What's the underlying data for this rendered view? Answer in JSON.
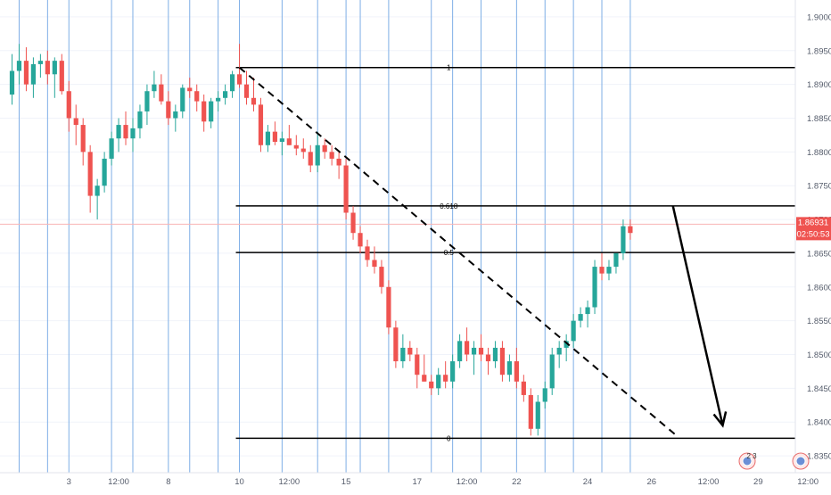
{
  "chart_data": {
    "type": "candlestick",
    "title": "",
    "xlabel": "",
    "ylabel": "",
    "ylim": [
      1.8325,
      1.9025
    ],
    "x_ticks": [
      {
        "label": "3",
        "i": 8
      },
      {
        "label": "12:00",
        "i": 15
      },
      {
        "label": "8",
        "i": 22
      },
      {
        "label": "10",
        "i": 32
      },
      {
        "label": "12:00",
        "i": 39
      },
      {
        "label": "15",
        "i": 47
      },
      {
        "label": "17",
        "i": 57
      },
      {
        "label": "12:00",
        "i": 64
      },
      {
        "label": "22",
        "i": 71
      },
      {
        "label": "24",
        "i": 81
      },
      {
        "label": "26",
        "i": 90
      },
      {
        "label": "12:00",
        "i": 98
      },
      {
        "label": "29",
        "i": 105
      },
      {
        "label": "12:00",
        "i": 112
      }
    ],
    "y_ticks": [
      "1.83500",
      "1.84000",
      "1.84500",
      "1.85000",
      "1.85500",
      "1.86000",
      "1.86500",
      "1.87000",
      "1.87500",
      "1.88000",
      "1.88500",
      "1.89000",
      "1.89500",
      "1.90000"
    ],
    "price_label": {
      "value": "1.86931",
      "countdown": "02:50:53",
      "price": 1.8693
    },
    "colors": {
      "up": "#26a69a",
      "down": "#ef5350",
      "vline": "#7eaee6",
      "fib": "#000000",
      "price_line": "#f8b4b4",
      "price_bg": "#ef5350"
    },
    "candles": [
      [
        1.8885,
        1.8945,
        1.887,
        1.892
      ],
      [
        1.892,
        1.896,
        1.89,
        1.8935
      ],
      [
        1.8935,
        1.8955,
        1.889,
        1.89
      ],
      [
        1.89,
        1.894,
        1.888,
        1.893
      ],
      [
        1.893,
        1.8945,
        1.891,
        1.8935
      ],
      [
        1.8935,
        1.895,
        1.89,
        1.8915
      ],
      [
        1.8915,
        1.894,
        1.888,
        1.8935
      ],
      [
        1.8935,
        1.8945,
        1.8885,
        1.889
      ],
      [
        1.889,
        1.8905,
        1.883,
        1.885
      ],
      [
        1.885,
        1.887,
        1.881,
        1.884
      ],
      [
        1.884,
        1.885,
        1.878,
        1.88
      ],
      [
        1.88,
        1.881,
        1.871,
        1.8735
      ],
      [
        1.8735,
        1.876,
        1.87,
        1.875
      ],
      [
        1.875,
        1.88,
        1.874,
        1.879
      ],
      [
        1.879,
        1.883,
        1.878,
        1.882
      ],
      [
        1.882,
        1.885,
        1.88,
        1.884
      ],
      [
        1.884,
        1.886,
        1.881,
        1.882
      ],
      [
        1.882,
        1.885,
        1.88,
        1.8835
      ],
      [
        1.8835,
        1.887,
        1.882,
        1.886
      ],
      [
        1.886,
        1.89,
        1.884,
        1.889
      ],
      [
        1.889,
        1.892,
        1.888,
        1.89
      ],
      [
        1.89,
        1.8915,
        1.887,
        1.8875
      ],
      [
        1.8875,
        1.889,
        1.884,
        1.885
      ],
      [
        1.885,
        1.887,
        1.883,
        1.886
      ],
      [
        1.886,
        1.89,
        1.885,
        1.8895
      ],
      [
        1.8895,
        1.891,
        1.888,
        1.889
      ],
      [
        1.889,
        1.89,
        1.886,
        1.8875
      ],
      [
        1.8875,
        1.8885,
        1.883,
        1.8845
      ],
      [
        1.8845,
        1.888,
        1.8835,
        1.8875
      ],
      [
        1.8875,
        1.889,
        1.886,
        1.888
      ],
      [
        1.888,
        1.89,
        1.887,
        1.889
      ],
      [
        1.889,
        1.892,
        1.888,
        1.8915
      ],
      [
        1.8915,
        1.896,
        1.8895,
        1.89
      ],
      [
        1.89,
        1.892,
        1.887,
        1.888
      ],
      [
        1.888,
        1.891,
        1.886,
        1.887
      ],
      [
        1.887,
        1.888,
        1.88,
        1.881
      ],
      [
        1.881,
        1.884,
        1.88,
        1.883
      ],
      [
        1.883,
        1.8845,
        1.881,
        1.8815
      ],
      [
        1.8815,
        1.883,
        1.8795,
        1.882
      ],
      [
        1.882,
        1.884,
        1.881,
        1.881
      ],
      [
        1.881,
        1.8825,
        1.8795,
        1.8805
      ],
      [
        1.8805,
        1.882,
        1.879,
        1.88
      ],
      [
        1.88,
        1.881,
        1.877,
        1.878
      ],
      [
        1.878,
        1.883,
        1.877,
        1.881
      ],
      [
        1.881,
        1.882,
        1.879,
        1.88
      ],
      [
        1.88,
        1.881,
        1.878,
        1.879
      ],
      [
        1.879,
        1.88,
        1.876,
        1.878
      ],
      [
        1.878,
        1.879,
        1.87,
        1.871
      ],
      [
        1.871,
        1.872,
        1.867,
        1.868
      ],
      [
        1.868,
        1.869,
        1.865,
        1.866
      ],
      [
        1.866,
        1.867,
        1.863,
        1.864
      ],
      [
        1.864,
        1.866,
        1.862,
        1.863
      ],
      [
        1.863,
        1.864,
        1.859,
        1.86
      ],
      [
        1.86,
        1.861,
        1.853,
        1.854
      ],
      [
        1.854,
        1.855,
        1.848,
        1.849
      ],
      [
        1.849,
        1.853,
        1.848,
        1.851
      ],
      [
        1.851,
        1.852,
        1.849,
        1.85
      ],
      [
        1.85,
        1.851,
        1.845,
        1.847
      ],
      [
        1.847,
        1.85,
        1.846,
        1.846
      ],
      [
        1.846,
        1.847,
        1.844,
        1.845
      ],
      [
        1.845,
        1.848,
        1.844,
        1.847
      ],
      [
        1.847,
        1.849,
        1.845,
        1.846
      ],
      [
        1.846,
        1.85,
        1.845,
        1.849
      ],
      [
        1.849,
        1.853,
        1.848,
        1.852
      ],
      [
        1.852,
        1.854,
        1.849,
        1.85
      ],
      [
        1.85,
        1.852,
        1.847,
        1.851
      ],
      [
        1.851,
        1.853,
        1.849,
        1.85
      ],
      [
        1.85,
        1.851,
        1.847,
        1.849
      ],
      [
        1.849,
        1.852,
        1.848,
        1.851
      ],
      [
        1.851,
        1.852,
        1.846,
        1.847
      ],
      [
        1.847,
        1.85,
        1.846,
        1.849
      ],
      [
        1.849,
        1.851,
        1.845,
        1.846
      ],
      [
        1.846,
        1.847,
        1.843,
        1.844
      ],
      [
        1.844,
        1.845,
        1.838,
        1.839
      ],
      [
        1.839,
        1.844,
        1.838,
        1.843
      ],
      [
        1.843,
        1.846,
        1.842,
        1.845
      ],
      [
        1.845,
        1.851,
        1.844,
        1.85
      ],
      [
        1.85,
        1.852,
        1.848,
        1.851
      ],
      [
        1.851,
        1.853,
        1.849,
        1.852
      ],
      [
        1.852,
        1.856,
        1.851,
        1.855
      ],
      [
        1.855,
        1.857,
        1.854,
        1.856
      ],
      [
        1.856,
        1.858,
        1.854,
        1.857
      ],
      [
        1.857,
        1.864,
        1.856,
        1.863
      ],
      [
        1.863,
        1.865,
        1.861,
        1.862
      ],
      [
        1.862,
        1.864,
        1.861,
        1.863
      ],
      [
        1.863,
        1.865,
        1.862,
        1.865
      ],
      [
        1.865,
        1.87,
        1.864,
        1.869
      ],
      [
        1.869,
        1.87,
        1.867,
        1.868
      ]
    ],
    "fib_levels": [
      {
        "label": "1",
        "price": 1.8925
      },
      {
        "label": "0.618",
        "price": 1.872
      },
      {
        "label": "0.5",
        "price": 1.8651
      },
      {
        "label": "0",
        "price": 1.8376
      }
    ],
    "vline_indices": [
      1,
      5,
      8,
      14,
      17,
      22,
      25,
      29,
      32,
      38,
      43,
      47,
      49,
      53,
      59,
      62,
      66,
      71,
      75,
      79,
      83,
      87
    ],
    "trendline": {
      "from": {
        "i": 32,
        "price": 1.8925
      },
      "to": {
        "i": 93.5,
        "price": 1.838
      }
    },
    "projection_arrow": {
      "from": {
        "i": 93,
        "price": 1.872
      },
      "to": {
        "i": 100,
        "price": 1.8395
      }
    },
    "badges": [
      {
        "text": "2 3"
      },
      {
        "text": ""
      }
    ]
  }
}
